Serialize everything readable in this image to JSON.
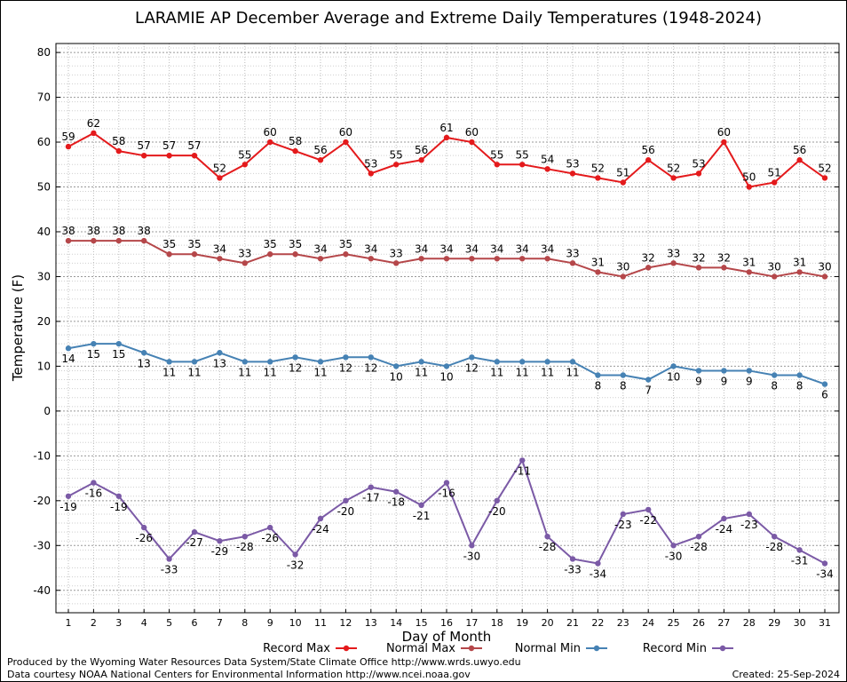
{
  "chart_data": {
    "type": "line",
    "title": "LARAMIE AP December Average and Extreme Daily Temperatures (1948-2024)",
    "xlabel": "Day of Month",
    "ylabel": "Temperature (F)",
    "ylim": [
      -45,
      82
    ],
    "yticks": [
      -40,
      -30,
      -20,
      -10,
      0,
      10,
      20,
      30,
      40,
      50,
      60,
      70,
      80
    ],
    "x": [
      1,
      2,
      3,
      4,
      5,
      6,
      7,
      8,
      9,
      10,
      11,
      12,
      13,
      14,
      15,
      16,
      17,
      18,
      19,
      20,
      21,
      22,
      23,
      24,
      25,
      26,
      27,
      28,
      29,
      30,
      31
    ],
    "grid": true,
    "legend_position": "bottom",
    "series": [
      {
        "name": "Record Max",
        "color": "#e41a1c",
        "values": [
          59,
          62,
          58,
          57,
          57,
          57,
          52,
          55,
          60,
          58,
          56,
          60,
          53,
          55,
          56,
          61,
          60,
          55,
          55,
          54,
          53,
          52,
          51,
          56,
          52,
          53,
          60,
          50,
          51,
          56,
          52
        ]
      },
      {
        "name": "Normal Max",
        "color": "#b5474a",
        "values": [
          38,
          38,
          38,
          38,
          35,
          35,
          34,
          33,
          35,
          35,
          34,
          35,
          34,
          33,
          34,
          34,
          34,
          34,
          34,
          34,
          33,
          31,
          30,
          32,
          33,
          32,
          32,
          31,
          30,
          31,
          30
        ]
      },
      {
        "name": "Normal Min",
        "color": "#4682b4",
        "values": [
          14,
          15,
          15,
          13,
          11,
          11,
          13,
          11,
          11,
          12,
          11,
          12,
          12,
          10,
          11,
          10,
          12,
          11,
          11,
          11,
          11,
          8,
          8,
          7,
          10,
          9,
          9,
          9,
          8,
          8,
          6
        ]
      },
      {
        "name": "Record Min",
        "color": "#7b5aa6",
        "values": [
          -19,
          -16,
          -19,
          -26,
          -33,
          -27,
          -29,
          -28,
          -26,
          -32,
          -24,
          -20,
          -17,
          -18,
          -21,
          -16,
          -30,
          -20,
          -11,
          -28,
          -33,
          -34,
          -23,
          -22,
          -30,
          -28,
          -24,
          -23,
          -28,
          -31,
          -34
        ]
      }
    ]
  },
  "footer": {
    "line1": "Produced by the Wyoming Water Resources Data System/State Climate Office http://www.wrds.uwyo.edu",
    "line2": "Data courtesy NOAA National Centers for Environmental Information http://www.ncei.noaa.gov",
    "created": "Created:  25-Sep-2024"
  }
}
